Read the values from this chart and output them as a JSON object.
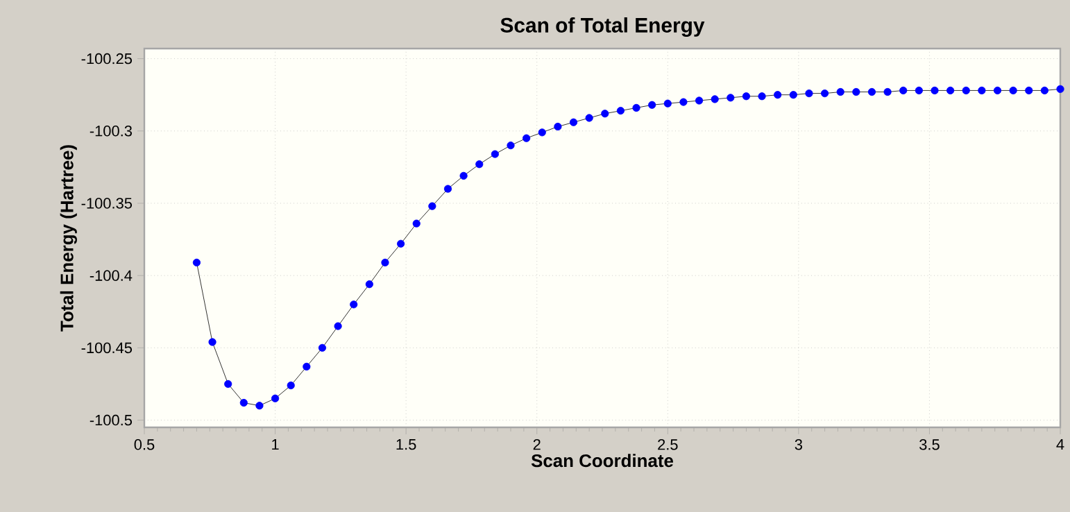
{
  "chart_data": {
    "type": "line",
    "title": "Scan of Total Energy",
    "xlabel": "Scan Coordinate",
    "ylabel": "Total Energy (Hartree)",
    "x": [
      0.7,
      0.76,
      0.82,
      0.88,
      0.94,
      1.0,
      1.06,
      1.12,
      1.18,
      1.24,
      1.3,
      1.36,
      1.42,
      1.48,
      1.54,
      1.6,
      1.66,
      1.72,
      1.78,
      1.84,
      1.9,
      1.96,
      2.02,
      2.08,
      2.14,
      2.2,
      2.26,
      2.32,
      2.38,
      2.44,
      2.5,
      2.56,
      2.62,
      2.68,
      2.74,
      2.8,
      2.86,
      2.92,
      2.98,
      3.04,
      3.1,
      3.16,
      3.22,
      3.28,
      3.34,
      3.4,
      3.46,
      3.52,
      3.58,
      3.64,
      3.7,
      3.76,
      3.82,
      3.88,
      3.94,
      4.0
    ],
    "series": [
      {
        "color": "#0000ff",
        "values": [
          -100.391,
          -100.446,
          -100.475,
          -100.488,
          -100.49,
          -100.485,
          -100.476,
          -100.463,
          -100.45,
          -100.435,
          -100.42,
          -100.406,
          -100.391,
          -100.378,
          -100.364,
          -100.352,
          -100.34,
          -100.331,
          -100.323,
          -100.316,
          -100.31,
          -100.305,
          -100.301,
          -100.297,
          -100.294,
          -100.291,
          -100.288,
          -100.286,
          -100.284,
          -100.282,
          -100.281,
          -100.28,
          -100.279,
          -100.278,
          -100.277,
          -100.276,
          -100.276,
          -100.275,
          -100.275,
          -100.274,
          -100.274,
          -100.273,
          -100.273,
          -100.273,
          -100.273,
          -100.272,
          -100.272,
          -100.272,
          -100.272,
          -100.272,
          -100.272,
          -100.272,
          -100.272,
          -100.272,
          -100.272,
          -100.271
        ]
      }
    ],
    "xlim": [
      0.5,
      4
    ],
    "ylim": [
      -100.505,
      -100.243
    ],
    "xticks": [
      0.5,
      1,
      1.5,
      2,
      2.5,
      3,
      3.5,
      4
    ],
    "yticks": [
      -100.5,
      -100.45,
      -100.4,
      -100.35,
      -100.3,
      -100.25
    ],
    "grid": true,
    "marker": "circle",
    "line_style": "solid"
  }
}
